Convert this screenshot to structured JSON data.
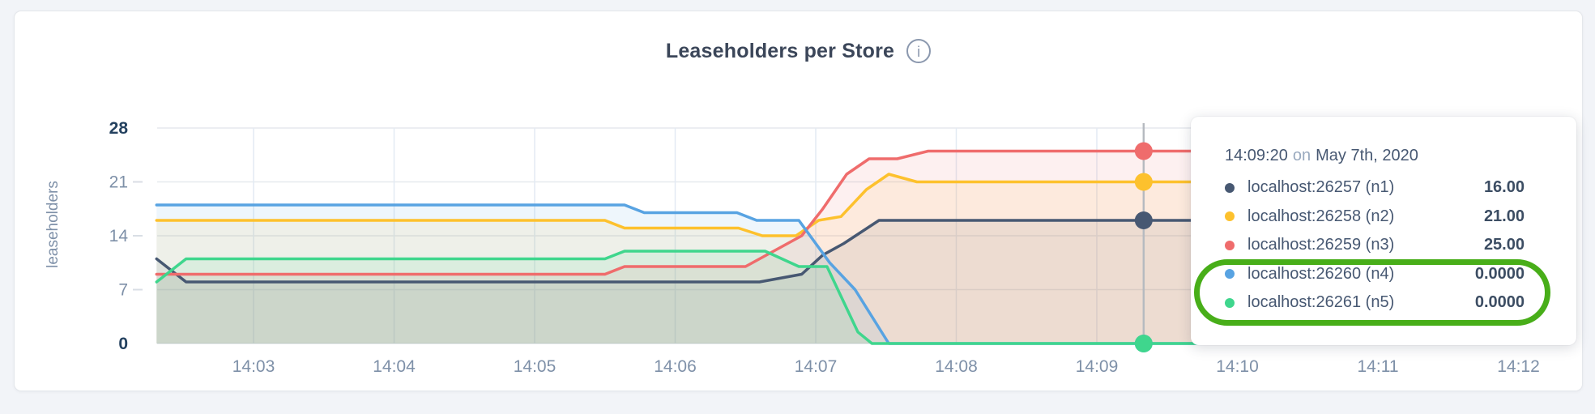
{
  "title": "Leaseholders per Store",
  "info_icon": "i",
  "tooltip": {
    "time": "14:09:20",
    "connector": "on",
    "date": "May 7th, 2020"
  },
  "annotation": {
    "shape": "ellipse-highlight",
    "color": "#48ae19",
    "circled_rows": [
      "localhost:26260 (n4)",
      "localhost:26261 (n5)"
    ]
  },
  "chart_data": {
    "type": "area",
    "title": "Leaseholders per Store",
    "xlabel": "",
    "ylabel": "leaseholders",
    "grid": true,
    "legend_position": "hover-tooltip",
    "y_domain": [
      0,
      28
    ],
    "x_domain_minutes_after_1400": [
      2.31,
      12.37
    ],
    "y_ticks": [
      {
        "v": 0,
        "label": "0",
        "bold": true
      },
      {
        "v": 7,
        "label": "7",
        "bold": false
      },
      {
        "v": 14,
        "label": "14",
        "bold": false
      },
      {
        "v": 21,
        "label": "21",
        "bold": false
      },
      {
        "v": 28,
        "label": "28",
        "bold": true
      }
    ],
    "x_ticks": [
      {
        "m": 3,
        "label": "14:03"
      },
      {
        "m": 4,
        "label": "14:04"
      },
      {
        "m": 5,
        "label": "14:05"
      },
      {
        "m": 6,
        "label": "14:06"
      },
      {
        "m": 7,
        "label": "14:07"
      },
      {
        "m": 8,
        "label": "14:08"
      },
      {
        "m": 9,
        "label": "14:09"
      },
      {
        "m": 10,
        "label": "14:10"
      },
      {
        "m": 11,
        "label": "14:11"
      },
      {
        "m": 12,
        "label": "14:12"
      }
    ],
    "hover": {
      "time_label": "14:09:20",
      "x_minutes": 9.3333
    },
    "series": [
      {
        "id": "n1",
        "label": "localhost:26257 (n1)",
        "color": "#475872",
        "hover_value": "16.00",
        "hover_v": 16,
        "points": [
          [
            2.31,
            11
          ],
          [
            2.52,
            8
          ],
          [
            6.6,
            8
          ],
          [
            6.9,
            9
          ],
          [
            7.05,
            11.5
          ],
          [
            7.2,
            13
          ],
          [
            7.45,
            16
          ],
          [
            12.37,
            16
          ]
        ]
      },
      {
        "id": "n2",
        "label": "localhost:26258 (n2)",
        "color": "#fdc12d",
        "hover_value": "21.00",
        "hover_v": 21,
        "points": [
          [
            2.31,
            16
          ],
          [
            5.5,
            16
          ],
          [
            5.64,
            15
          ],
          [
            6.45,
            15
          ],
          [
            6.62,
            14
          ],
          [
            6.86,
            14
          ],
          [
            7.02,
            16
          ],
          [
            7.18,
            16.5
          ],
          [
            7.36,
            20
          ],
          [
            7.52,
            22
          ],
          [
            7.72,
            21
          ],
          [
            12.37,
            21
          ]
        ]
      },
      {
        "id": "n3",
        "label": "localhost:26259 (n3)",
        "color": "#ef6c6c",
        "hover_value": "25.00",
        "hover_v": 25,
        "points": [
          [
            2.31,
            9
          ],
          [
            5.5,
            9
          ],
          [
            5.64,
            10
          ],
          [
            6.5,
            10
          ],
          [
            6.9,
            14
          ],
          [
            7.05,
            17.5
          ],
          [
            7.22,
            22
          ],
          [
            7.38,
            24
          ],
          [
            7.58,
            24
          ],
          [
            7.8,
            25
          ],
          [
            12.37,
            25
          ]
        ]
      },
      {
        "id": "n4",
        "label": "localhost:26260 (n4)",
        "color": "#58a3e2",
        "hover_value": "0.0000",
        "hover_v": 0,
        "points": [
          [
            2.31,
            18
          ],
          [
            5.64,
            18
          ],
          [
            5.78,
            17
          ],
          [
            6.44,
            17
          ],
          [
            6.58,
            16
          ],
          [
            6.88,
            16
          ],
          [
            7.1,
            10.5
          ],
          [
            7.28,
            7
          ],
          [
            7.52,
            0
          ],
          [
            12.37,
            0
          ]
        ]
      },
      {
        "id": "n5",
        "label": "localhost:26261 (n5)",
        "color": "#3fd68d",
        "hover_value": "0.0000",
        "hover_v": 0,
        "points": [
          [
            2.31,
            8
          ],
          [
            2.52,
            11
          ],
          [
            5.5,
            11
          ],
          [
            5.64,
            12
          ],
          [
            6.64,
            12
          ],
          [
            6.88,
            10
          ],
          [
            7.08,
            10
          ],
          [
            7.3,
            1.5
          ],
          [
            7.4,
            0
          ],
          [
            12.37,
            0
          ]
        ]
      }
    ]
  }
}
